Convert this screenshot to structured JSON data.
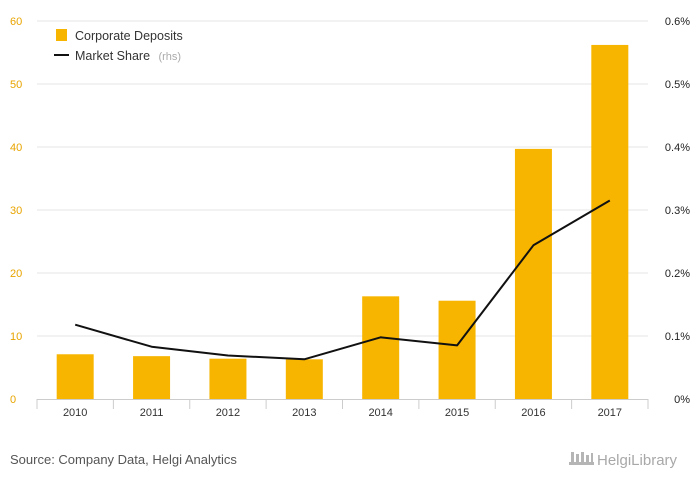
{
  "chart_data": {
    "type": "bar",
    "categories": [
      "2010",
      "2011",
      "2012",
      "2013",
      "2014",
      "2015",
      "2016",
      "2017"
    ],
    "series": [
      {
        "name": "Corporate Deposits",
        "type": "bar",
        "axis": "left",
        "color": "#f7b500",
        "values": [
          7.1,
          6.8,
          6.4,
          6.3,
          16.3,
          15.6,
          39.7,
          56.2
        ]
      },
      {
        "name": "Market Share",
        "type": "line",
        "axis": "right",
        "color": "#111111",
        "values": [
          0.118,
          0.083,
          0.069,
          0.063,
          0.098,
          0.085,
          0.244,
          0.315
        ]
      }
    ],
    "ylim_left": [
      0,
      60
    ],
    "yticks_left": [
      "0",
      "10",
      "20",
      "30",
      "40",
      "50",
      "60"
    ],
    "ylim_right": [
      0,
      0.6
    ],
    "yticks_right": [
      "0%",
      "0.1%",
      "0.2%",
      "0.3%",
      "0.4%",
      "0.5%",
      "0.6%"
    ],
    "legend": {
      "position": "top-left",
      "entries": [
        {
          "label": "Corporate Deposits",
          "suffix": ""
        },
        {
          "label": "Market Share",
          "suffix": "(rhs)"
        }
      ]
    },
    "grid": true
  },
  "footer": {
    "source": "Source: Company Data, Helgi Analytics",
    "brand": "HelgiLibrary"
  }
}
